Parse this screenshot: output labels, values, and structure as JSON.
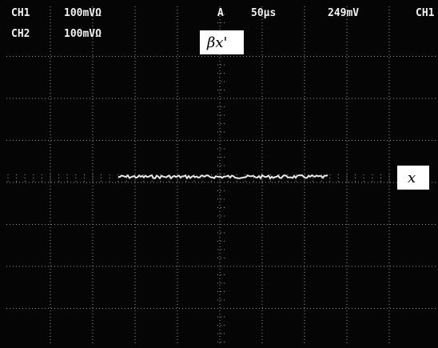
{
  "channels": [
    {
      "name": "CH1",
      "scale": "100mVΩ"
    },
    {
      "name": "CH2",
      "scale": "100mVΩ"
    }
  ],
  "trigger": {
    "mode": "A",
    "timebase": "50μs",
    "level": "249mV",
    "source": "CH1"
  },
  "annotations": [
    "βx'",
    "x"
  ]
}
